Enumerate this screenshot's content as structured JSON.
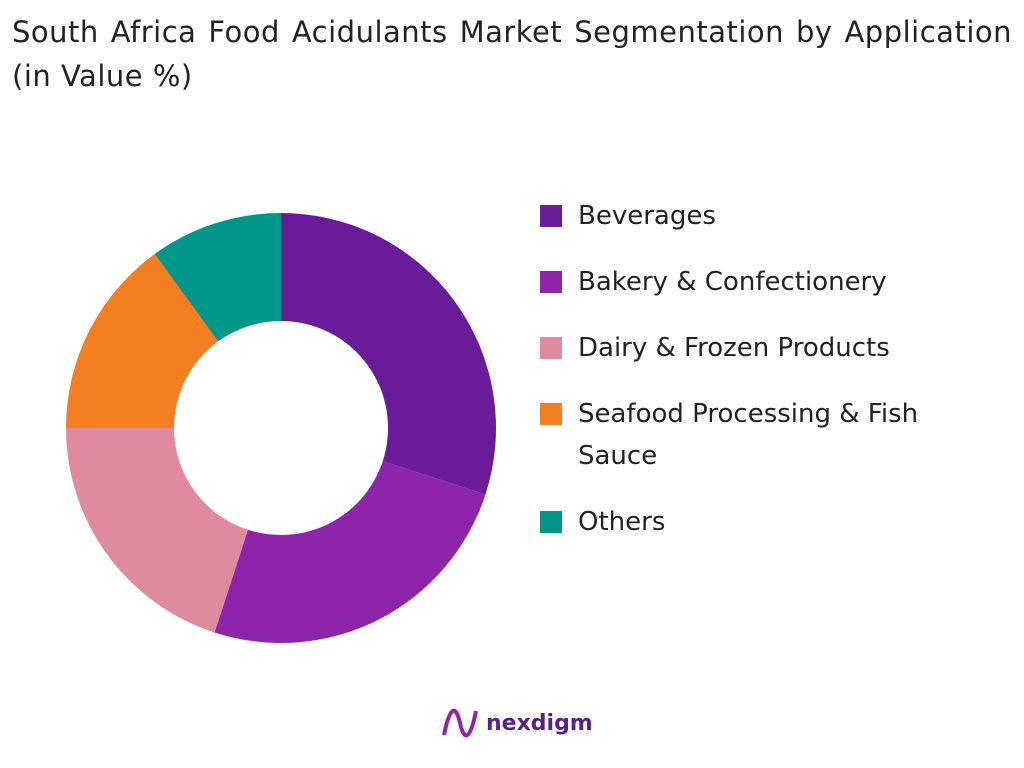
{
  "chart_data": {
    "type": "pie",
    "title": "South Africa Food Acidulants Market Segmentation by Application (in Value %)",
    "categories": [
      "Beverages",
      "Bakery & Confectionery",
      "Dairy & Frozen Products",
      "Seafood Processing & Fish Sauce",
      "Others"
    ],
    "values": [
      30,
      25,
      20,
      15,
      10
    ],
    "colors": [
      "#6a1b9a",
      "#8e24aa",
      "#e08aa0",
      "#f47f20",
      "#00968a"
    ],
    "donut": true
  },
  "brand": "nexdigm"
}
